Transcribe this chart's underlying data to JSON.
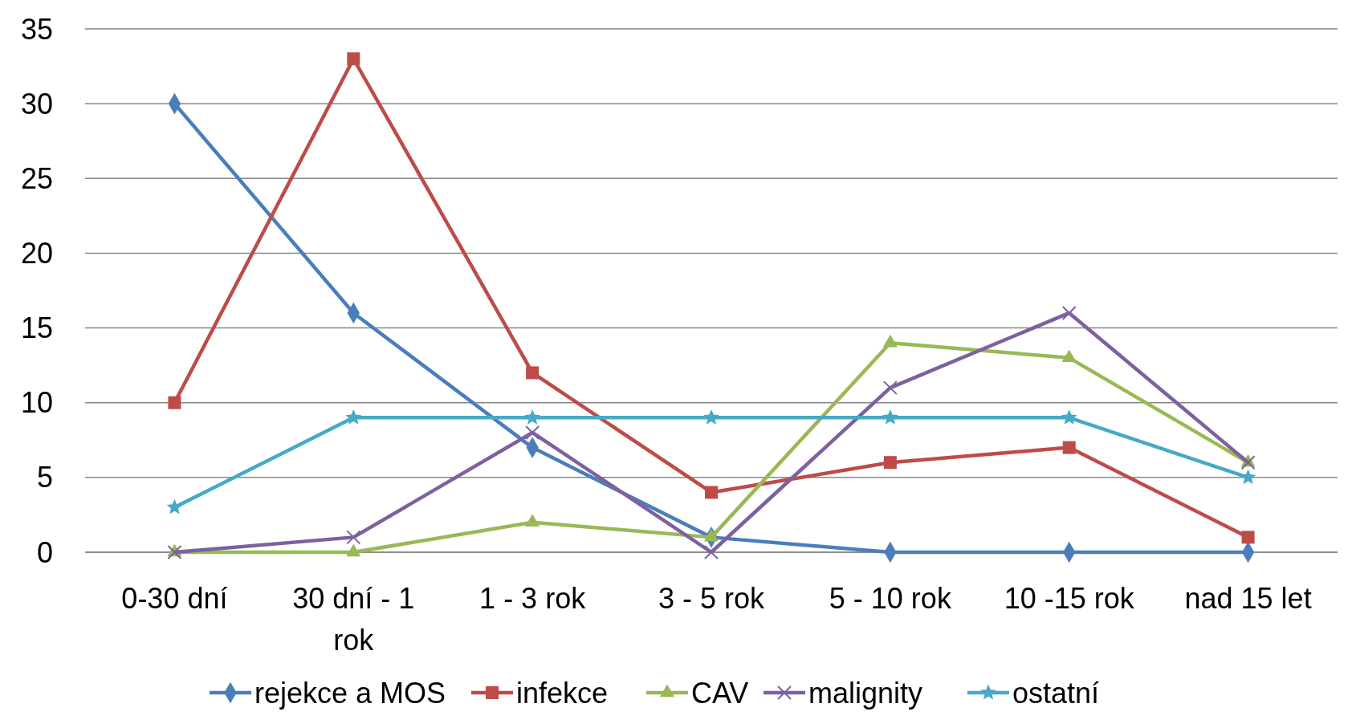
{
  "chart_data": {
    "type": "line",
    "categories": [
      "0-30 dní",
      "30 dní - 1 rok",
      "1 - 3 rok",
      "3 - 5 rok",
      "5 - 10 rok",
      "10 -15 rok",
      "nad 15 let"
    ],
    "series": [
      {
        "name": "rejekce a MOS",
        "color": "#4a7ebb",
        "marker": "diamond",
        "values": [
          30,
          16,
          7,
          1,
          0,
          0,
          0
        ]
      },
      {
        "name": "infekce",
        "color": "#be4b48",
        "marker": "square",
        "values": [
          10,
          33,
          12,
          4,
          6,
          7,
          1
        ]
      },
      {
        "name": "CAV",
        "color": "#98b954",
        "marker": "triangle",
        "values": [
          0,
          0,
          2,
          1,
          14,
          13,
          6
        ]
      },
      {
        "name": "malignity",
        "color": "#7d60a0",
        "marker": "cross",
        "values": [
          0,
          1,
          8,
          0,
          11,
          16,
          6
        ]
      },
      {
        "name": "ostatní",
        "color": "#46aac5",
        "marker": "star",
        "values": [
          3,
          9,
          9,
          9,
          9,
          9,
          5
        ]
      }
    ],
    "ylim": [
      0,
      35
    ],
    "yticks": [
      0,
      5,
      10,
      15,
      20,
      25,
      30,
      35
    ],
    "grid": "y",
    "legend": "bottom",
    "line_style": "solid"
  }
}
